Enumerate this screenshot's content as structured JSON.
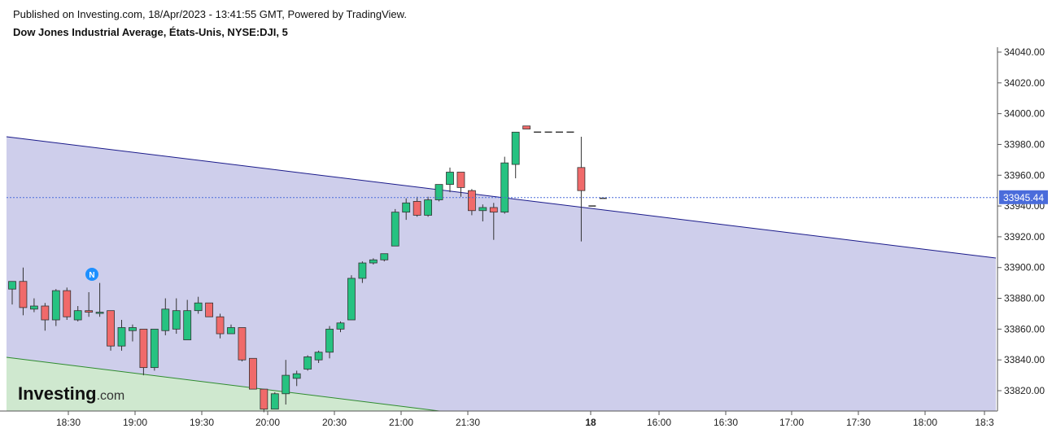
{
  "header": {
    "published": "Published on Investing.com, 18/Apr/2023 - 13:41:55 GMT, Powered by TradingView.",
    "title": "Dow Jones Industrial Average, États-Unis, NYSE:DJI, 5"
  },
  "logo": {
    "brand": "Investing",
    "suffix": ".com"
  },
  "news_marker": "N",
  "colors": {
    "up": "#26c281",
    "down": "#f06a6a",
    "wick": "#333333",
    "channel_fill": "#cbcbea",
    "channel_line": "#1a1a8a",
    "lower_fill": "#cfe8cf",
    "lower_line": "#2e8b2e",
    "last_price_line": "#4a6cdb",
    "last_price_label_bg": "#4a6cdb"
  },
  "chart_data": {
    "type": "candlestick",
    "ylim": [
      33806,
      34045
    ],
    "y_ticks": [
      "34040.00",
      "34020.00",
      "34000.00",
      "33980.00",
      "33960.00",
      "33940.00",
      "33920.00",
      "33900.00",
      "33880.00",
      "33860.00",
      "33840.00",
      "33820.00"
    ],
    "x_ticks": [
      "18:30",
      "19:00",
      "19:30",
      "20:00",
      "20:30",
      "21:00",
      "21:30",
      "18",
      "16:00",
      "16:30",
      "17:00",
      "17:30",
      "18:00",
      "18:3"
    ],
    "last_price": "33945.44",
    "candles": [
      {
        "o": 33886,
        "h": 33890,
        "l": 33876,
        "c": 33891
      },
      {
        "o": 33891,
        "h": 33900,
        "l": 33869,
        "c": 33874
      },
      {
        "o": 33873,
        "h": 33880,
        "l": 33871,
        "c": 33875
      },
      {
        "o": 33875,
        "h": 33877,
        "l": 33859,
        "c": 33866
      },
      {
        "o": 33866,
        "h": 33886,
        "l": 33862,
        "c": 33885
      },
      {
        "o": 33885,
        "h": 33887,
        "l": 33866,
        "c": 33868
      },
      {
        "o": 33866,
        "h": 33875,
        "l": 33865,
        "c": 33872
      },
      {
        "o": 33872,
        "h": 33884,
        "l": 33868,
        "c": 33871
      },
      {
        "o": 33871,
        "h": 33890,
        "l": 33868,
        "c": 33871
      },
      {
        "o": 33872,
        "h": 33871,
        "l": 33846,
        "c": 33849
      },
      {
        "o": 33849,
        "h": 33866,
        "l": 33846,
        "c": 33861
      },
      {
        "o": 33859,
        "h": 33863,
        "l": 33852,
        "c": 33861
      },
      {
        "o": 33860,
        "h": 33860,
        "l": 33830,
        "c": 33835
      },
      {
        "o": 33835,
        "h": 33860,
        "l": 33833,
        "c": 33860
      },
      {
        "o": 33859,
        "h": 33880,
        "l": 33856,
        "c": 33873
      },
      {
        "o": 33860,
        "h": 33880,
        "l": 33857,
        "c": 33872
      },
      {
        "o": 33853,
        "h": 33879,
        "l": 33853,
        "c": 33872
      },
      {
        "o": 33872,
        "h": 33881,
        "l": 33870,
        "c": 33877
      },
      {
        "o": 33877,
        "h": 33876,
        "l": 33868,
        "c": 33868
      },
      {
        "o": 33868,
        "h": 33870,
        "l": 33854,
        "c": 33857
      },
      {
        "o": 33857,
        "h": 33863,
        "l": 33857,
        "c": 33861
      },
      {
        "o": 33861,
        "h": 33861,
        "l": 33839,
        "c": 33840
      },
      {
        "o": 33841,
        "h": 33840,
        "l": 33822,
        "c": 33821
      },
      {
        "o": 33821,
        "h": 33819,
        "l": 33806,
        "c": 33808
      },
      {
        "o": 33808,
        "h": 33819,
        "l": 33808,
        "c": 33818
      },
      {
        "o": 33818,
        "h": 33840,
        "l": 33811,
        "c": 33830
      },
      {
        "o": 33828,
        "h": 33833,
        "l": 33823,
        "c": 33831
      },
      {
        "o": 33834,
        "h": 33843,
        "l": 33833,
        "c": 33842
      },
      {
        "o": 33840,
        "h": 33846,
        "l": 33838,
        "c": 33845
      },
      {
        "o": 33845,
        "h": 33862,
        "l": 33841,
        "c": 33860
      },
      {
        "o": 33860,
        "h": 33865,
        "l": 33858,
        "c": 33864
      },
      {
        "o": 33866,
        "h": 33895,
        "l": 33866,
        "c": 33893
      },
      {
        "o": 33893,
        "h": 33904,
        "l": 33890,
        "c": 33903
      },
      {
        "o": 33903,
        "h": 33906,
        "l": 33902,
        "c": 33905
      },
      {
        "o": 33905,
        "h": 33909,
        "l": 33904,
        "c": 33909
      },
      {
        "o": 33914,
        "h": 33938,
        "l": 33914,
        "c": 33936
      },
      {
        "o": 33936,
        "h": 33945,
        "l": 33931,
        "c": 33942
      },
      {
        "o": 33943,
        "h": 33946,
        "l": 33933,
        "c": 33934
      },
      {
        "o": 33934,
        "h": 33946,
        "l": 33933,
        "c": 33944
      },
      {
        "o": 33944,
        "h": 33953,
        "l": 33943,
        "c": 33954
      },
      {
        "o": 33954,
        "h": 33965,
        "l": 33949,
        "c": 33962
      },
      {
        "o": 33962,
        "h": 33961,
        "l": 33946,
        "c": 33952
      },
      {
        "o": 33950,
        "h": 33951,
        "l": 33934,
        "c": 33937
      },
      {
        "o": 33937,
        "h": 33941,
        "l": 33930,
        "c": 33939
      },
      {
        "o": 33939,
        "h": 33942,
        "l": 33918,
        "c": 33936
      },
      {
        "o": 33936,
        "h": 33972,
        "l": 33935,
        "c": 33968
      },
      {
        "o": 33967,
        "h": 33988,
        "l": 33958,
        "c": 33988
      },
      {
        "o": 33992,
        "h": 33992,
        "l": 33990,
        "c": 33990
      },
      {
        "o": 33988,
        "h": 33988,
        "l": 33988,
        "c": 33988
      },
      {
        "o": 33988,
        "h": 33988,
        "l": 33988,
        "c": 33988
      },
      {
        "o": 33988,
        "h": 33988,
        "l": 33988,
        "c": 33988
      },
      {
        "o": 33988,
        "h": 33988,
        "l": 33988,
        "c": 33988
      },
      {
        "o": 33965,
        "h": 33985,
        "l": 33917,
        "c": 33950
      },
      {
        "o": 33940,
        "h": 33940,
        "l": 33940,
        "c": 33940
      },
      {
        "o": 33945,
        "h": 33945,
        "l": 33945,
        "c": 33945
      }
    ]
  }
}
